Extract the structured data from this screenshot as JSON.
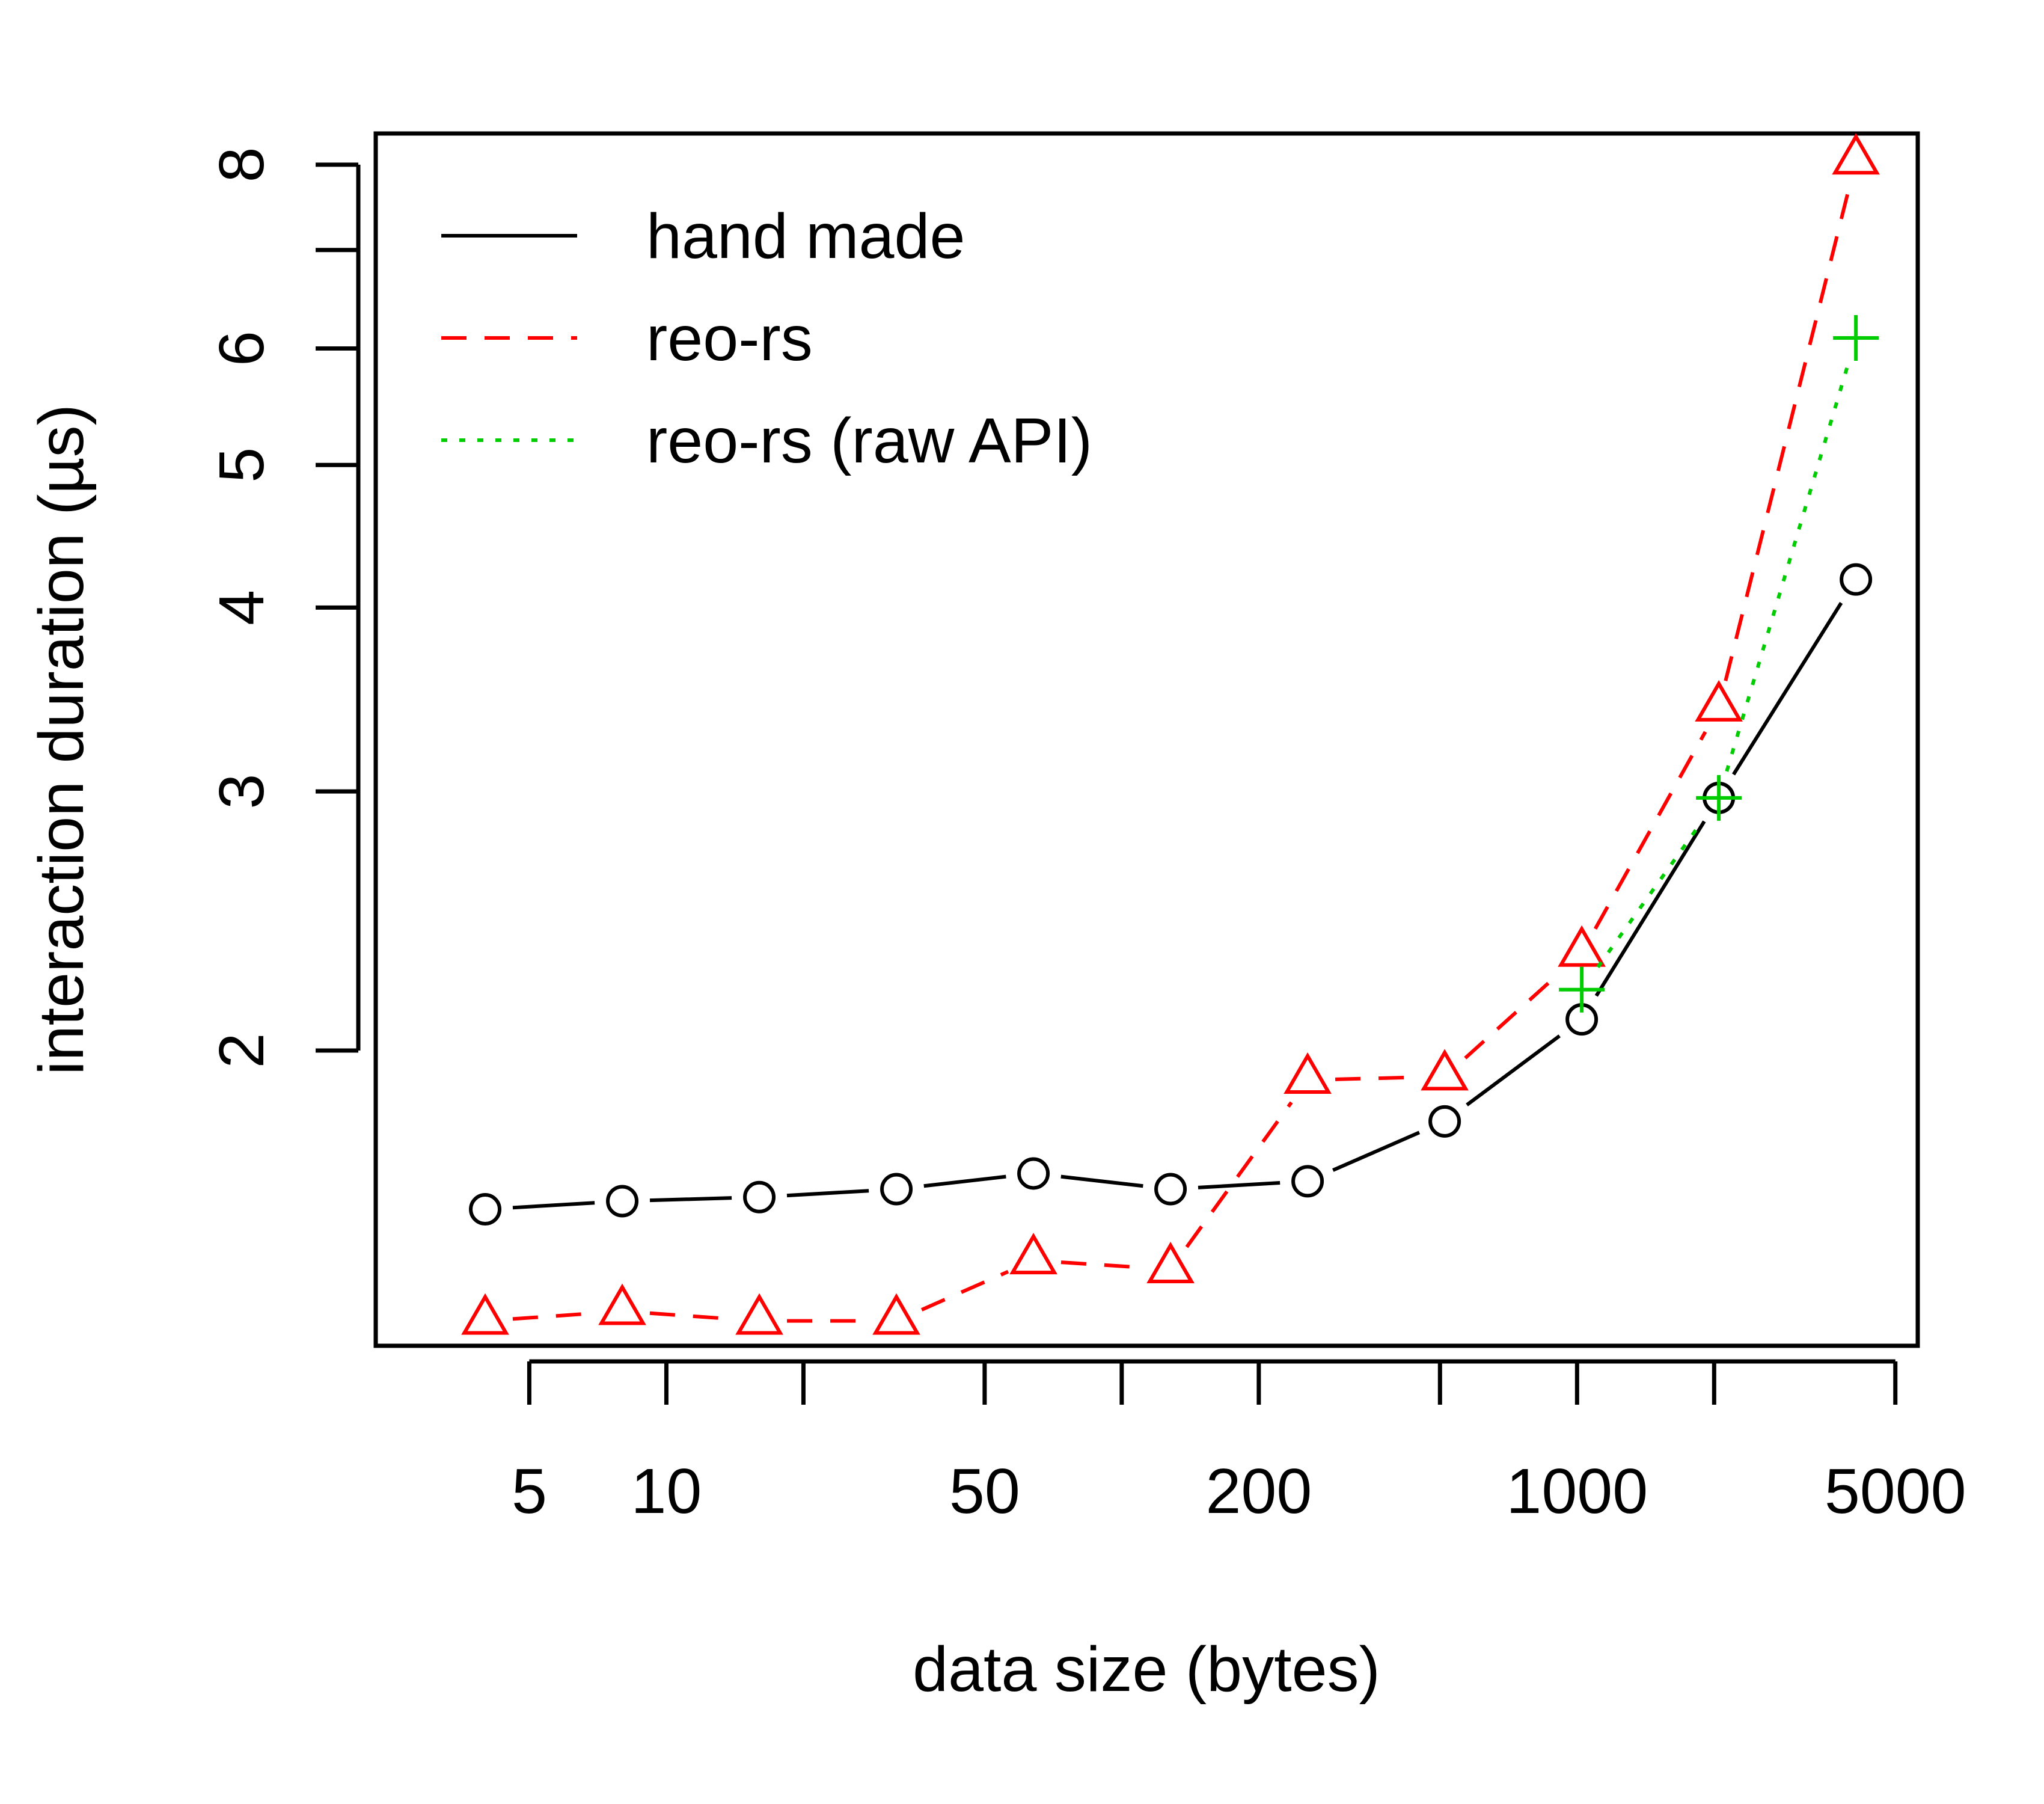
{
  "chart_data": {
    "type": "line",
    "title": "",
    "xlabel": "data size (bytes)",
    "ylabel": "interaction duration (µs)",
    "x_scale": "log",
    "y_scale": "log",
    "x_range": [
      2.3,
      5600
    ],
    "y_range": [
      1.26,
      8.4
    ],
    "x_ticks": [
      5,
      10,
      20,
      50,
      100,
      200,
      500,
      1000,
      2000,
      5000
    ],
    "x_tick_labels": [
      "5",
      "10",
      "",
      "50",
      "",
      "200",
      "",
      "1000",
      "",
      "5000"
    ],
    "y_ticks": [
      2,
      3,
      4,
      5,
      6,
      7,
      8
    ],
    "y_tick_labels": [
      "2",
      "3",
      "4",
      "5",
      "6",
      "",
      "8"
    ],
    "legend_position": "top-left",
    "grid": false,
    "x": [
      4,
      8,
      16,
      32,
      64,
      128,
      256,
      512,
      1024,
      2048,
      4096
    ],
    "series": [
      {
        "name": "hand made",
        "color": "#000000",
        "line": "solid",
        "marker": "circle",
        "values": [
          1.56,
          1.58,
          1.59,
          1.61,
          1.65,
          1.61,
          1.63,
          1.79,
          2.1,
          2.97,
          4.18
        ]
      },
      {
        "name": "reo-rs",
        "color": "#ff0000",
        "line": "dashed",
        "marker": "triangle",
        "values": [
          1.31,
          1.33,
          1.31,
          1.31,
          1.44,
          1.42,
          1.91,
          1.92,
          2.33,
          3.42,
          8.05
        ]
      },
      {
        "name": "reo-rs (raw API)",
        "color": "#00cd00",
        "line": "dotted",
        "marker": "plus",
        "x": [
          1024,
          2048,
          4096
        ],
        "values": [
          2.2,
          2.97,
          6.1
        ]
      }
    ]
  }
}
